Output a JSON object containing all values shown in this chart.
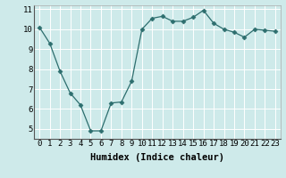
{
  "x": [
    0,
    1,
    2,
    3,
    4,
    5,
    6,
    7,
    8,
    9,
    10,
    11,
    12,
    13,
    14,
    15,
    16,
    17,
    18,
    19,
    20,
    21,
    22,
    23
  ],
  "y": [
    10.1,
    9.3,
    7.9,
    6.8,
    6.2,
    4.9,
    4.9,
    6.3,
    6.35,
    7.4,
    10.0,
    10.55,
    10.65,
    10.4,
    10.4,
    10.6,
    10.95,
    10.3,
    10.0,
    9.85,
    9.6,
    10.0,
    9.95,
    9.9
  ],
  "line_color": "#2d6e6e",
  "marker": "D",
  "marker_size": 2.5,
  "bg_color": "#ceeaea",
  "grid_color": "#ffffff",
  "xlabel": "Humidex (Indice chaleur)",
  "xlim": [
    -0.5,
    23.5
  ],
  "ylim": [
    4.5,
    11.2
  ],
  "yticks": [
    5,
    6,
    7,
    8,
    9,
    10,
    11
  ],
  "xticks": [
    0,
    1,
    2,
    3,
    4,
    5,
    6,
    7,
    8,
    9,
    10,
    11,
    12,
    13,
    14,
    15,
    16,
    17,
    18,
    19,
    20,
    21,
    22,
    23
  ],
  "tick_fontsize": 6.5,
  "label_fontsize": 7.5
}
